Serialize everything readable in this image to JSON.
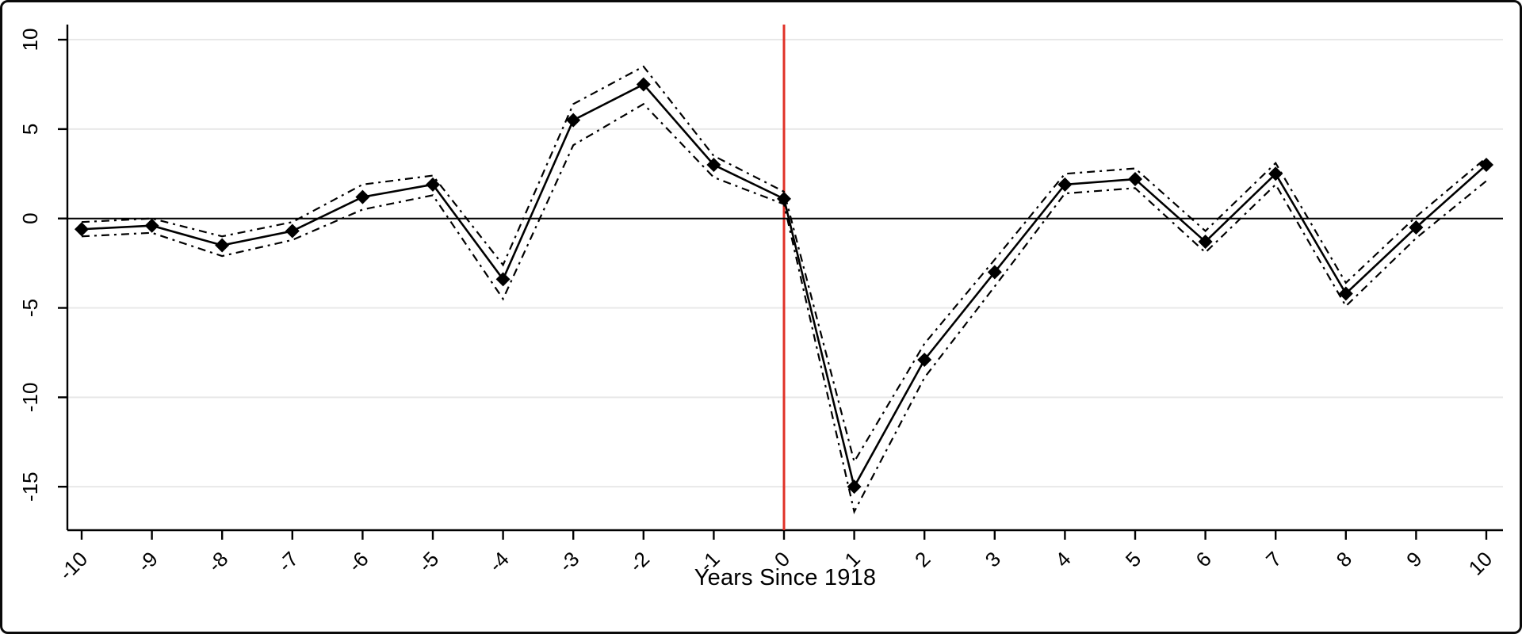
{
  "chart_data": {
    "type": "line",
    "title": "",
    "xlabel": "Years Since 1918",
    "ylabel": "",
    "x": [
      -10,
      -9,
      -8,
      -7,
      -6,
      -5,
      -4,
      -3,
      -2,
      -1,
      0,
      1,
      2,
      3,
      4,
      5,
      6,
      7,
      8,
      9,
      10
    ],
    "x_tick_labels": [
      "-10",
      "-9",
      "-8",
      "-7",
      "-6",
      "-5",
      "-4",
      "-3",
      "-2",
      "-1",
      "0",
      "1",
      "2",
      "3",
      "4",
      "5",
      "6",
      "7",
      "8",
      "9",
      "10"
    ],
    "y_ticks": [
      10,
      5,
      0,
      -5,
      -10,
      -15
    ],
    "y_tick_labels": [
      "10",
      "5",
      "0",
      "-5",
      "-10",
      "-15"
    ],
    "xlim": [
      -10.6,
      10.6
    ],
    "ylim": [
      -17.4,
      10.85
    ],
    "grid": "horizontal",
    "legend": "none",
    "series": [
      {
        "name": "coefficient",
        "style": "solid",
        "marker": "diamond",
        "values": [
          -0.6,
          -0.4,
          -1.5,
          -0.7,
          1.2,
          1.9,
          -3.4,
          5.5,
          7.5,
          3.0,
          1.1,
          -15.0,
          -7.9,
          -3.0,
          1.9,
          2.2,
          -1.3,
          2.5,
          -4.2,
          -0.5,
          3.0
        ]
      },
      {
        "name": "upper-ci",
        "style": "dash-dot",
        "marker": "none",
        "values": [
          -0.2,
          0.0,
          -1.0,
          -0.2,
          1.9,
          2.4,
          -2.6,
          6.4,
          8.5,
          3.5,
          1.5,
          -13.6,
          -7.0,
          -2.3,
          2.5,
          2.8,
          -0.7,
          3.1,
          -3.6,
          0.1,
          3.4
        ]
      },
      {
        "name": "lower-ci",
        "style": "dash-dot",
        "marker": "none",
        "values": [
          -1.0,
          -0.8,
          -2.1,
          -1.2,
          0.5,
          1.3,
          -4.5,
          4.1,
          6.4,
          2.3,
          0.8,
          -16.4,
          -8.9,
          -3.8,
          1.4,
          1.7,
          -1.9,
          1.9,
          -4.9,
          -1.1,
          2.1
        ]
      }
    ],
    "reference_lines": {
      "vertical_x": 0,
      "horizontal_y": 0
    },
    "colors": {
      "series": "#000000",
      "marker": "#000000",
      "ci": "#000000",
      "vertical_reference": "#e03127",
      "zero_line": "#000000",
      "gridline": "#e8e8e8",
      "axis": "#000000",
      "background": "#ffffff",
      "frame": "#000000"
    }
  }
}
